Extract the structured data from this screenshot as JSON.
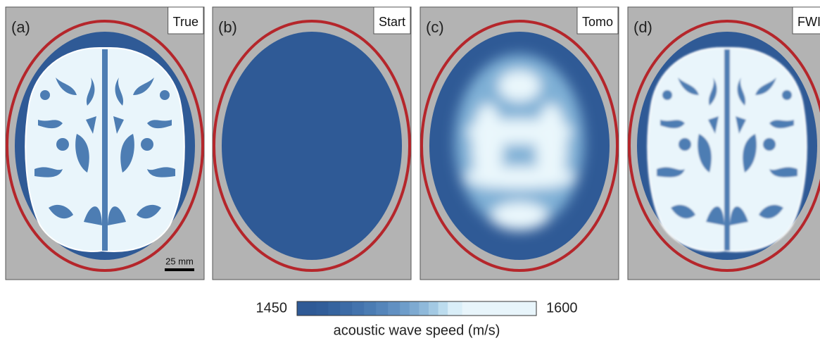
{
  "panels": [
    {
      "label": "(a)",
      "tag": "True"
    },
    {
      "label": "(b)",
      "tag": "Start"
    },
    {
      "label": "(c)",
      "tag": "Tomo"
    },
    {
      "label": "(d)",
      "tag": "FWI"
    }
  ],
  "scale_bar": "25 mm",
  "colorbar": {
    "min": 1450,
    "max": 1600,
    "label": "acoustic wave speed (m/s)"
  }
}
